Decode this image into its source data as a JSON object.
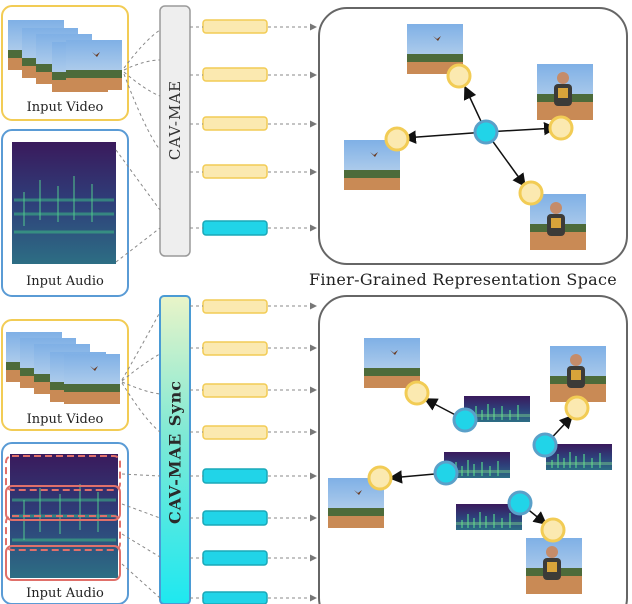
{
  "top": {
    "video_label": "Input Video",
    "audio_label": "Input Audio",
    "encoder_label": "CAV-MAE",
    "space_caption": "Finer-Grained Representation Space"
  },
  "bottom": {
    "video_label": "Input Video",
    "audio_label": "Input Audio",
    "encoder_label": "CAV-MAE Sync"
  },
  "colors": {
    "video_box": "#f2cc55",
    "audio_box": "#5a9bd5",
    "video_token": "#fbe9b0",
    "audio_token": "#21d4e8",
    "audio_segment_border": "#e0706a",
    "space_border": "#666666"
  }
}
